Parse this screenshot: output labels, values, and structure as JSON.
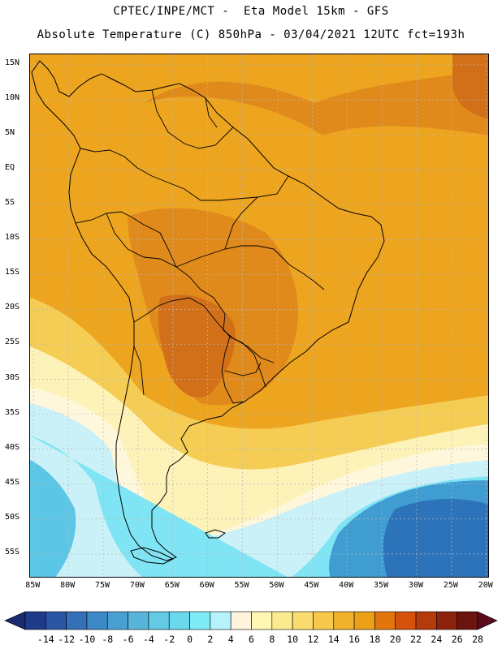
{
  "header": {
    "line1": "CPTEC/INPE/MCT -  Eta Model 15km - GFS",
    "line2": "Absolute Temperature (C) 850hPa - 03/04/2021 12UTC fct=193h"
  },
  "map": {
    "lat_labels": [
      "15N",
      "10N",
      "5N",
      "EQ",
      "5S",
      "10S",
      "15S",
      "20S",
      "25S",
      "30S",
      "35S",
      "40S",
      "45S",
      "50S",
      "55S"
    ],
    "lon_labels": [
      "85W",
      "80W",
      "75W",
      "70W",
      "65W",
      "60W",
      "55W",
      "50W",
      "45W",
      "40W",
      "35W",
      "30W",
      "25W",
      "20W"
    ]
  },
  "colorbar": {
    "labels": [
      "-14",
      "-12",
      "-10",
      "-8",
      "-6",
      "-4",
      "-2",
      "0",
      "2",
      "4",
      "6",
      "8",
      "10",
      "12",
      "14",
      "16",
      "18",
      "20",
      "22",
      "24",
      "26",
      "28"
    ],
    "colors": [
      "#203a8a",
      "#2c55a3",
      "#3470b8",
      "#3d88c6",
      "#4a9fd2",
      "#57b5dc",
      "#63c9e5",
      "#6ad9ee",
      "#7deaf6",
      "#b5f2fb",
      "#fff5dd",
      "#fff7b3",
      "#fdea8e",
      "#fbdc6e",
      "#f6c94c",
      "#f0b22c",
      "#eba017",
      "#e4750c",
      "#d4520c",
      "#b53a0c",
      "#8e230d",
      "#6b130d"
    ],
    "left_arrow_color": "#1a2a6c",
    "right_arrow_color": "#5a0a1a"
  },
  "field_colors": {
    "background": "#eda520",
    "warm": "#e08a1c",
    "hot": "#d2701a",
    "mild": "#f5cd55",
    "cool": "#fdf2b8",
    "pale": "#fff7dc",
    "cold1": "#cbf1f8",
    "cold2": "#7fe4f3",
    "cold3": "#5cc6e6",
    "cold4": "#3f9dd2",
    "cold5": "#2d73ba"
  }
}
